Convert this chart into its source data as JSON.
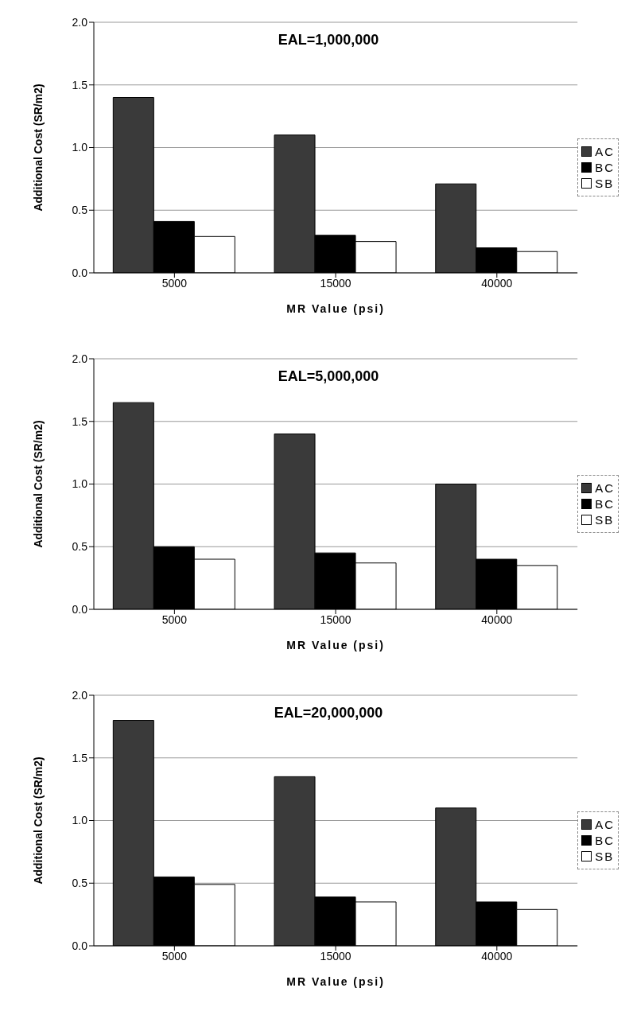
{
  "chart_data": [
    {
      "type": "bar",
      "title": "EAL=1,000,000",
      "xlabel": "MR Value (psi)",
      "ylabel": "Additional Cost (SR/m2)",
      "categories": [
        "5000",
        "15000",
        "40000"
      ],
      "series": [
        {
          "name": "AC",
          "color": "#3a3a3a",
          "values": [
            1.4,
            1.1,
            0.71
          ]
        },
        {
          "name": "BC",
          "color": "#000000",
          "values": [
            0.41,
            0.3,
            0.2
          ]
        },
        {
          "name": "SB",
          "color": "#ffffff",
          "values": [
            0.29,
            0.25,
            0.17
          ]
        }
      ],
      "ylim": [
        0,
        2
      ],
      "yticks": [
        {
          "value": 0,
          "label": "0.0"
        },
        {
          "value": 0.5,
          "label": "0.5"
        },
        {
          "value": 1,
          "label": "1.0"
        },
        {
          "value": 1.5,
          "label": "1.5"
        },
        {
          "value": 2,
          "label": "2.0"
        }
      ],
      "grid": "y",
      "legend": "right"
    },
    {
      "type": "bar",
      "title": "EAL=5,000,000",
      "xlabel": "MR Value (psi)",
      "ylabel": "Additional Cost (SR/m2)",
      "categories": [
        "5000",
        "15000",
        "40000"
      ],
      "series": [
        {
          "name": "AC",
          "color": "#3a3a3a",
          "values": [
            1.65,
            1.4,
            1.0
          ]
        },
        {
          "name": "BC",
          "color": "#000000",
          "values": [
            0.5,
            0.45,
            0.4
          ]
        },
        {
          "name": "SB",
          "color": "#ffffff",
          "values": [
            0.4,
            0.37,
            0.35
          ]
        }
      ],
      "ylim": [
        0,
        2
      ],
      "yticks": [
        {
          "value": 0,
          "label": "0.0"
        },
        {
          "value": 0.5,
          "label": "0.5"
        },
        {
          "value": 1,
          "label": "1.0"
        },
        {
          "value": 1.5,
          "label": "1.5"
        },
        {
          "value": 2,
          "label": "2.0"
        }
      ],
      "grid": "y",
      "legend": "right"
    },
    {
      "type": "bar",
      "title": "EAL=20,000,000",
      "xlabel": "MR Value (psi)",
      "ylabel": "Additional Cost (SR/m2)",
      "categories": [
        "5000",
        "15000",
        "40000"
      ],
      "series": [
        {
          "name": "AC",
          "color": "#3a3a3a",
          "values": [
            1.8,
            1.35,
            1.1
          ]
        },
        {
          "name": "BC",
          "color": "#000000",
          "values": [
            0.55,
            0.39,
            0.35
          ]
        },
        {
          "name": "SB",
          "color": "#ffffff",
          "values": [
            0.49,
            0.35,
            0.29
          ]
        }
      ],
      "ylim": [
        0,
        2
      ],
      "yticks": [
        {
          "value": 0,
          "label": "0.0"
        },
        {
          "value": 0.5,
          "label": "0.5"
        },
        {
          "value": 1,
          "label": "1.0"
        },
        {
          "value": 1.5,
          "label": "1.5"
        },
        {
          "value": 2,
          "label": "2.0"
        }
      ],
      "grid": "y",
      "legend": "right"
    }
  ]
}
